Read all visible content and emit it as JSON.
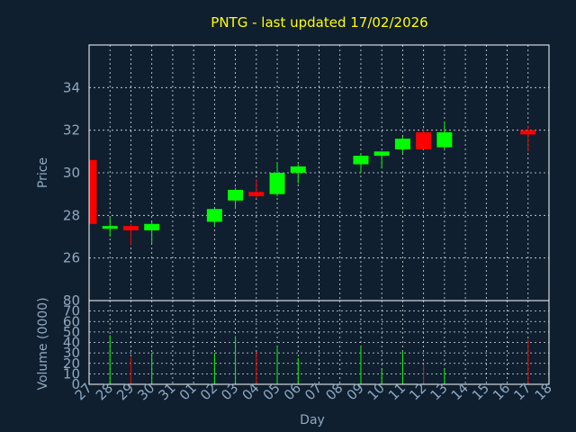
{
  "chart_data": {
    "type": "candlestick",
    "title": "PNTG - last updated 17/02/2026",
    "ylabel": "Price",
    "volume_label": "Volume (0000)",
    "xlabel": "Day",
    "x_ticks": [
      "27",
      "28",
      "29",
      "30",
      "31",
      "01",
      "02",
      "03",
      "04",
      "05",
      "06",
      "07",
      "08",
      "09",
      "10",
      "11",
      "12",
      "13",
      "14",
      "15",
      "16",
      "17",
      "18"
    ],
    "price_ticks": [
      26,
      28,
      30,
      32,
      34
    ],
    "price_ylim": [
      24.0,
      36.0
    ],
    "volume_ticks": [
      0,
      10,
      20,
      30,
      40,
      50,
      60,
      70,
      80
    ],
    "volume_ylim": [
      0,
      80
    ],
    "colors": {
      "up": "#00ff00",
      "down": "#ff0000",
      "title": "#ffff00",
      "text": "#8fa8c0",
      "background": "#0f1f2f"
    },
    "candles": [
      {
        "day": "27",
        "open": 30.6,
        "high": 30.6,
        "low": 27.6,
        "close": 27.6,
        "volume": 0
      },
      {
        "day": "28",
        "open": 27.5,
        "high": 27.9,
        "low": 27.0,
        "close": 27.5,
        "volume": 47
      },
      {
        "day": "29",
        "open": 27.5,
        "high": 27.6,
        "low": 26.6,
        "close": 27.3,
        "volume": 26
      },
      {
        "day": "30",
        "open": 27.3,
        "high": 27.7,
        "low": 26.7,
        "close": 27.6,
        "volume": 30
      },
      {
        "day": "02",
        "open": 27.7,
        "high": 28.3,
        "low": 27.5,
        "close": 28.3,
        "volume": 30
      },
      {
        "day": "03",
        "open": 28.7,
        "high": 29.3,
        "low": 28.3,
        "close": 29.2,
        "volume": 46
      },
      {
        "day": "04",
        "open": 29.1,
        "high": 29.7,
        "low": 28.8,
        "close": 28.9,
        "volume": 31
      },
      {
        "day": "05",
        "open": 29.0,
        "high": 30.5,
        "low": 28.9,
        "close": 30.0,
        "volume": 35
      },
      {
        "day": "06",
        "open": 30.0,
        "high": 30.4,
        "low": 29.5,
        "close": 30.3,
        "volume": 25
      },
      {
        "day": "09",
        "open": 30.4,
        "high": 30.9,
        "low": 30.0,
        "close": 30.8,
        "volume": 36
      },
      {
        "day": "10",
        "open": 30.8,
        "high": 31.0,
        "low": 30.2,
        "close": 31.0,
        "volume": 14
      },
      {
        "day": "11",
        "open": 31.1,
        "high": 31.7,
        "low": 30.9,
        "close": 31.6,
        "volume": 32
      },
      {
        "day": "12",
        "open": 31.9,
        "high": 32.1,
        "low": 31.1,
        "close": 31.1,
        "volume": 19
      },
      {
        "day": "13",
        "open": 31.2,
        "high": 32.4,
        "low": 31.1,
        "close": 31.9,
        "volume": 14
      },
      {
        "day": "17",
        "open": 32.0,
        "high": 32.2,
        "low": 31.0,
        "close": 31.8,
        "volume": 43
      }
    ]
  }
}
